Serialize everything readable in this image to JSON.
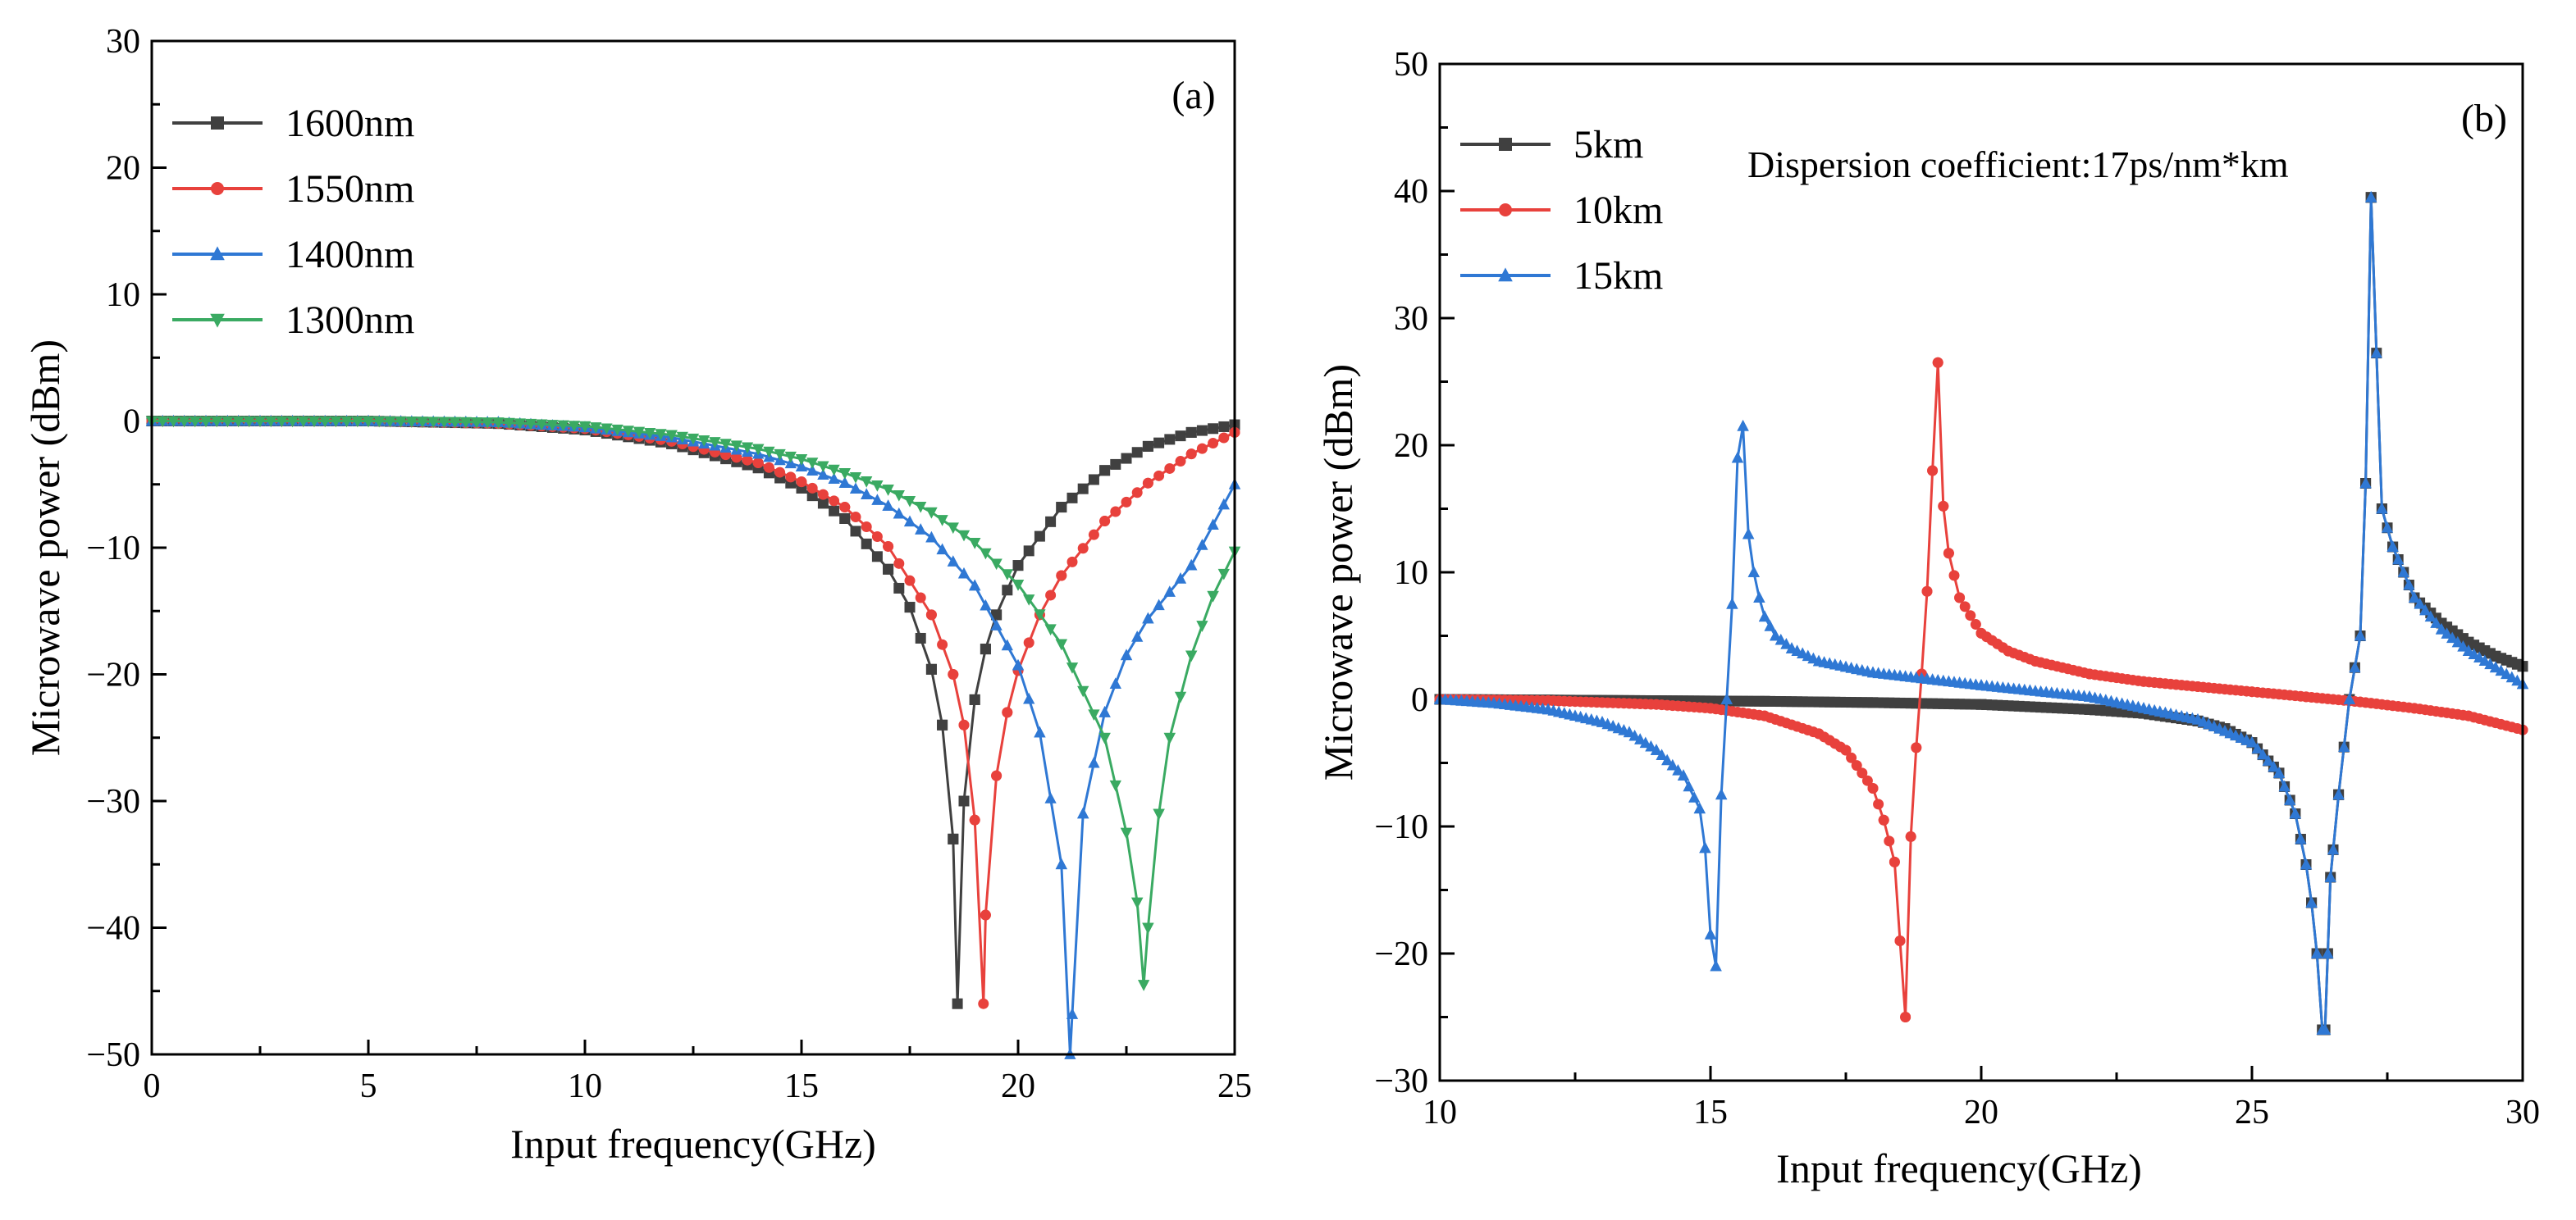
{
  "chart_data": [
    {
      "type": "line",
      "panel_label": "(a)",
      "xlabel": "Input frequency(GHz)",
      "ylabel": "Microwave power (dBm)",
      "xlim": [
        0,
        25
      ],
      "ylim": [
        -50,
        30
      ],
      "x_ticks": [
        0,
        5,
        10,
        15,
        20,
        25
      ],
      "y_ticks": [
        -50,
        -40,
        -30,
        -20,
        -10,
        0,
        10,
        20,
        30
      ],
      "x_tick_labels": [
        "0",
        "5",
        "10",
        "15",
        "20",
        "25"
      ],
      "y_tick_labels": [
        "−50",
        "−40",
        "−30",
        "−20",
        "−10",
        "0",
        "10",
        "20",
        "30"
      ],
      "legend_position": "top-left",
      "marker_step_ghz": 0.25,
      "series": [
        {
          "name": "1600nm",
          "color": "#404040",
          "marker": "square",
          "notch_freq": 18.6,
          "min_db": -46,
          "x": [
            0,
            5,
            8,
            10,
            12,
            14,
            15,
            16,
            17,
            17.5,
            18,
            18.25,
            18.5,
            18.6,
            18.75,
            19,
            19.25,
            19.5,
            20,
            21,
            22,
            23,
            24,
            25
          ],
          "y": [
            0,
            0,
            -0.2,
            -0.7,
            -1.8,
            -3.7,
            -5.3,
            -7.7,
            -11.7,
            -14.7,
            -19.6,
            -24.0,
            -33.0,
            -46.0,
            -30.0,
            -22.0,
            -18.0,
            -15.3,
            -11.4,
            -6.8,
            -3.9,
            -2.0,
            -0.9,
            -0.3
          ]
        },
        {
          "name": "1550nm",
          "color": "#e8413c",
          "marker": "circle",
          "notch_freq": 19.2,
          "min_db": -46,
          "x": [
            0,
            5,
            8,
            10,
            12,
            14,
            15,
            16,
            17,
            18,
            18.5,
            18.75,
            19,
            19.2,
            19.25,
            19.5,
            19.75,
            20,
            20.5,
            21,
            22,
            23,
            24,
            25
          ],
          "y": [
            0,
            0,
            -0.2,
            -0.6,
            -1.6,
            -3.3,
            -4.8,
            -6.8,
            -9.9,
            -15.3,
            -20.0,
            -24.0,
            -31.5,
            -46.0,
            -39.0,
            -28.0,
            -23.0,
            -19.7,
            -15.3,
            -12.2,
            -7.9,
            -4.9,
            -2.6,
            -0.9
          ]
        },
        {
          "name": "1400nm",
          "color": "#2f78d4",
          "marker": "triangle-up",
          "notch_freq": 21.2,
          "min_db": -50,
          "x": [
            0,
            5,
            8,
            10,
            12,
            14,
            15,
            16,
            17,
            18,
            19,
            20,
            20.5,
            21,
            21.2,
            21.5,
            22,
            22.5,
            23,
            24,
            25
          ],
          "y": [
            0,
            0,
            -0.1,
            -0.5,
            -1.3,
            -2.6,
            -3.6,
            -4.9,
            -6.7,
            -9.2,
            -13.0,
            -19.3,
            -24.6,
            -35.0,
            -50.0,
            -31.0,
            -23.0,
            -18.5,
            -15.6,
            -11.4,
            -5.0
          ]
        },
        {
          "name": "1300nm",
          "color": "#3aaa62",
          "marker": "triangle-down",
          "notch_freq": 22.9,
          "min_db": -44.5,
          "x": [
            0,
            5,
            8,
            10,
            12,
            14,
            15,
            16,
            17,
            18,
            19,
            20,
            21,
            22,
            22.5,
            22.75,
            22.9,
            23,
            23.25,
            23.5,
            24,
            24.5,
            25
          ],
          "y": [
            0,
            0,
            -0.1,
            -0.4,
            -1.1,
            -2.2,
            -3.0,
            -4.1,
            -5.4,
            -7.2,
            -9.6,
            -12.9,
            -17.6,
            -25.0,
            -32.5,
            -38.0,
            -44.5,
            -40.0,
            -31.0,
            -25.0,
            -18.5,
            -13.8,
            -10.3
          ]
        }
      ]
    },
    {
      "type": "line",
      "panel_label": "(b)",
      "xlabel": "Input frequency(GHz)",
      "ylabel": "Microwave power (dBm)",
      "xlim": [
        10,
        30
      ],
      "ylim": [
        -30,
        50
      ],
      "x_ticks": [
        10,
        15,
        20,
        25,
        30
      ],
      "y_ticks": [
        -30,
        -20,
        -10,
        0,
        10,
        20,
        30,
        40,
        50
      ],
      "x_tick_labels": [
        "10",
        "15",
        "20",
        "25",
        "30"
      ],
      "y_tick_labels": [
        "−30",
        "−20",
        "−10",
        "0",
        "10",
        "20",
        "30",
        "40",
        "50"
      ],
      "legend_position": "top-left",
      "annotation": "Dispersion coefficient:17ps/nm*km",
      "marker_step_ghz": 0.1,
      "series": [
        {
          "name": "5km",
          "color": "#404040",
          "marker": "square",
          "x": [
            10,
            12,
            14,
            16,
            18,
            20,
            22,
            23,
            24,
            24.5,
            25,
            25.5,
            25.8,
            26,
            26.1,
            26.2,
            26.3,
            26.35,
            26.45,
            26.6,
            26.8,
            27.0,
            27.1,
            27.2,
            27.4,
            27.6,
            28,
            28.5,
            29,
            29.5,
            30
          ],
          "y": [
            0,
            -0.05,
            -0.1,
            -0.15,
            -0.25,
            -0.4,
            -0.8,
            -1.1,
            -1.7,
            -2.3,
            -3.4,
            -5.8,
            -9.0,
            -13.0,
            -16.0,
            -20.0,
            -26.0,
            -26.0,
            -14.0,
            -7.5,
            0.0,
            5.0,
            17.0,
            39.5,
            15.0,
            12.0,
            8.0,
            6.0,
            4.5,
            3.4,
            2.6
          ]
        },
        {
          "name": "10km",
          "color": "#e8413c",
          "marker": "circle",
          "x": [
            10,
            12,
            14,
            15,
            16,
            17,
            17.5,
            18,
            18.2,
            18.4,
            18.5,
            18.6,
            18.7,
            18.8,
            18.9,
            19.0,
            19.1,
            19.2,
            19.3,
            19.4,
            19.6,
            20,
            20.5,
            21,
            22,
            23,
            24,
            25,
            26,
            27,
            28,
            29,
            30
          ],
          "y": [
            0,
            -0.1,
            -0.4,
            -0.7,
            -1.3,
            -2.7,
            -4.0,
            -7.0,
            -9.5,
            -12.8,
            -19.0,
            -25.0,
            -10.8,
            -3.8,
            2.0,
            8.5,
            18.0,
            26.5,
            15.2,
            11.5,
            8.0,
            5.2,
            3.8,
            3.0,
            2.0,
            1.4,
            1.0,
            0.6,
            0.2,
            -0.2,
            -0.7,
            -1.3,
            -2.4
          ]
        },
        {
          "name": "15km",
          "color": "#2f78d4",
          "marker": "triangle-up",
          "x": [
            10,
            11,
            12,
            13,
            13.5,
            14,
            14.5,
            14.8,
            14.9,
            15.0,
            15.1,
            15.2,
            15.3,
            15.4,
            15.5,
            15.6,
            15.7,
            15.8,
            15.9,
            16.0,
            16.2,
            16.5,
            17,
            18,
            20,
            22,
            24,
            25,
            25.5,
            25.8,
            26,
            26.1,
            26.2,
            26.3,
            26.35,
            26.45,
            26.6,
            26.8,
            27.0,
            27.1,
            27.2,
            27.4,
            27.6,
            28,
            28.5,
            29,
            29.5,
            30
          ],
          "y": [
            0,
            -0.3,
            -0.8,
            -1.8,
            -2.6,
            -4.0,
            -6.0,
            -8.6,
            -11.7,
            -18.5,
            -21.0,
            -7.5,
            0.0,
            7.5,
            19.0,
            21.5,
            13.0,
            10.0,
            8.0,
            6.5,
            5.0,
            4.0,
            3.0,
            2.1,
            1.1,
            0.2,
            -1.6,
            -3.4,
            -5.8,
            -9.0,
            -13.0,
            -16.0,
            -20.0,
            -26.0,
            -26.0,
            -14.0,
            -7.5,
            0.0,
            5.0,
            17.0,
            39.5,
            15.0,
            12.0,
            8.0,
            5.5,
            3.8,
            2.5,
            1.2
          ]
        }
      ]
    }
  ]
}
